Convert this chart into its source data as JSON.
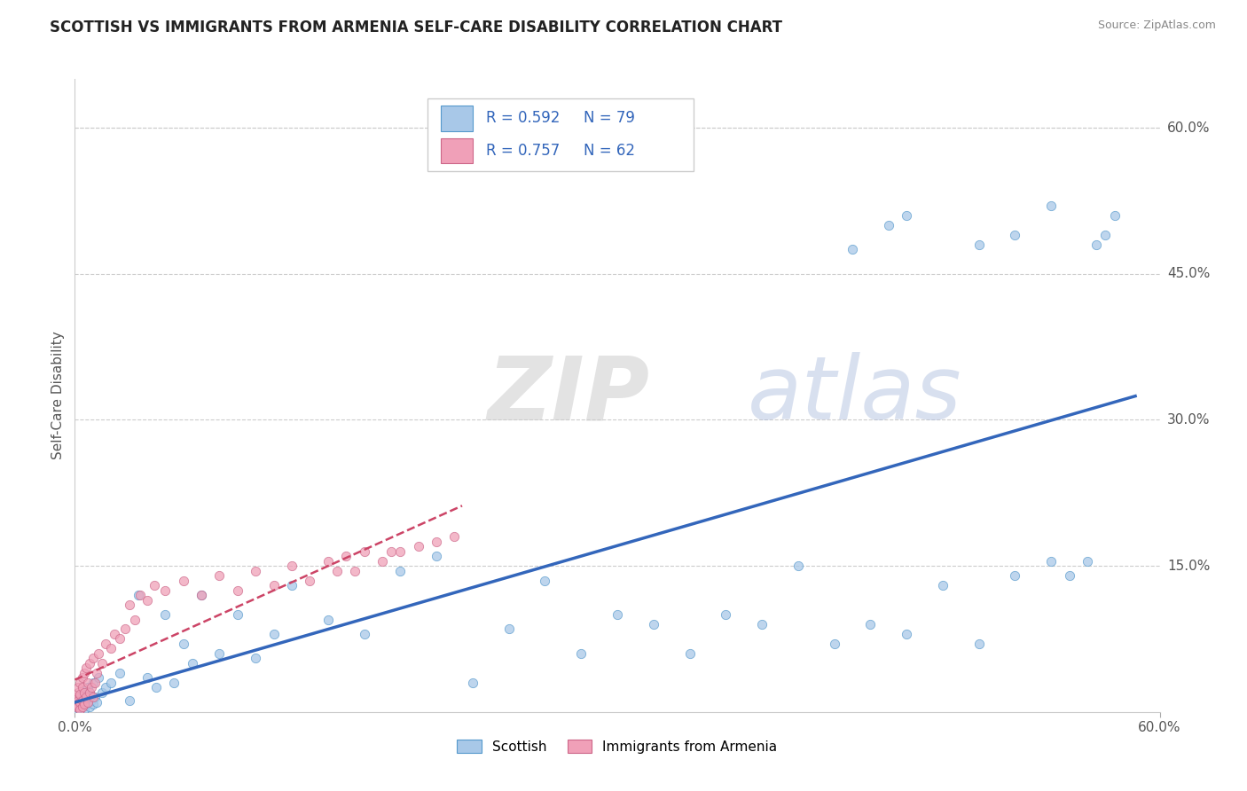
{
  "title": "SCOTTISH VS IMMIGRANTS FROM ARMENIA SELF-CARE DISABILITY CORRELATION CHART",
  "source": "Source: ZipAtlas.com",
  "ylabel": "Self-Care Disability",
  "xlim": [
    0.0,
    0.6
  ],
  "ylim": [
    0.0,
    0.65
  ],
  "ytick_labels": [
    "15.0%",
    "30.0%",
    "45.0%",
    "60.0%"
  ],
  "ytick_values": [
    0.15,
    0.3,
    0.45,
    0.6
  ],
  "legend_bottom_labels": [
    "Scottish",
    "Immigrants from Armenia"
  ],
  "legend_top": {
    "R1": "0.592",
    "N1": "79",
    "R2": "0.757",
    "N2": "62"
  },
  "blue_fill": "#A8C8E8",
  "blue_edge": "#5599CC",
  "pink_fill": "#F0A0B8",
  "pink_edge": "#CC6688",
  "trend_blue": "#3366BB",
  "trend_pink": "#CC4466",
  "watermark_color": "#DDEEFF",
  "title_fontsize": 12,
  "scottish_x": [
    0.001,
    0.001,
    0.001,
    0.002,
    0.002,
    0.002,
    0.002,
    0.003,
    0.003,
    0.003,
    0.003,
    0.004,
    0.004,
    0.004,
    0.005,
    0.005,
    0.005,
    0.006,
    0.006,
    0.007,
    0.007,
    0.008,
    0.008,
    0.009,
    0.01,
    0.01,
    0.011,
    0.012,
    0.013,
    0.015,
    0.017,
    0.02,
    0.025,
    0.03,
    0.035,
    0.04,
    0.045,
    0.05,
    0.055,
    0.06,
    0.065,
    0.07,
    0.08,
    0.09,
    0.1,
    0.11,
    0.12,
    0.14,
    0.16,
    0.18,
    0.2,
    0.22,
    0.24,
    0.26,
    0.28,
    0.3,
    0.32,
    0.34,
    0.36,
    0.38,
    0.4,
    0.42,
    0.44,
    0.46,
    0.48,
    0.5,
    0.52,
    0.54,
    0.55,
    0.56,
    0.565,
    0.57,
    0.575,
    0.43,
    0.45,
    0.46,
    0.5,
    0.52,
    0.54
  ],
  "scottish_y": [
    0.005,
    0.008,
    0.003,
    0.006,
    0.01,
    0.004,
    0.012,
    0.008,
    0.015,
    0.003,
    0.01,
    0.007,
    0.018,
    0.005,
    0.012,
    0.003,
    0.02,
    0.008,
    0.015,
    0.01,
    0.025,
    0.005,
    0.02,
    0.012,
    0.008,
    0.03,
    0.015,
    0.01,
    0.035,
    0.02,
    0.025,
    0.03,
    0.04,
    0.012,
    0.12,
    0.035,
    0.025,
    0.1,
    0.03,
    0.07,
    0.05,
    0.12,
    0.06,
    0.1,
    0.055,
    0.08,
    0.13,
    0.095,
    0.08,
    0.145,
    0.16,
    0.03,
    0.085,
    0.135,
    0.06,
    0.1,
    0.09,
    0.06,
    0.1,
    0.09,
    0.15,
    0.07,
    0.09,
    0.08,
    0.13,
    0.07,
    0.14,
    0.155,
    0.14,
    0.155,
    0.48,
    0.49,
    0.51,
    0.475,
    0.5,
    0.51,
    0.48,
    0.49,
    0.52
  ],
  "armenia_x": [
    0.001,
    0.001,
    0.001,
    0.001,
    0.002,
    0.002,
    0.002,
    0.002,
    0.003,
    0.003,
    0.003,
    0.003,
    0.004,
    0.004,
    0.004,
    0.004,
    0.005,
    0.005,
    0.005,
    0.006,
    0.006,
    0.007,
    0.007,
    0.008,
    0.008,
    0.009,
    0.01,
    0.01,
    0.011,
    0.012,
    0.013,
    0.015,
    0.017,
    0.02,
    0.022,
    0.025,
    0.028,
    0.03,
    0.033,
    0.036,
    0.04,
    0.044,
    0.05,
    0.06,
    0.07,
    0.08,
    0.09,
    0.1,
    0.11,
    0.12,
    0.13,
    0.14,
    0.145,
    0.15,
    0.155,
    0.16,
    0.17,
    0.175,
    0.18,
    0.19,
    0.2,
    0.21
  ],
  "armenia_y": [
    0.01,
    0.005,
    0.015,
    0.008,
    0.012,
    0.02,
    0.005,
    0.025,
    0.01,
    0.03,
    0.003,
    0.018,
    0.012,
    0.025,
    0.005,
    0.035,
    0.008,
    0.04,
    0.02,
    0.015,
    0.045,
    0.01,
    0.03,
    0.02,
    0.05,
    0.025,
    0.015,
    0.055,
    0.03,
    0.04,
    0.06,
    0.05,
    0.07,
    0.065,
    0.08,
    0.075,
    0.085,
    0.11,
    0.095,
    0.12,
    0.115,
    0.13,
    0.125,
    0.135,
    0.12,
    0.14,
    0.125,
    0.145,
    0.13,
    0.15,
    0.135,
    0.155,
    0.145,
    0.16,
    0.145,
    0.165,
    0.155,
    0.165,
    0.165,
    0.17,
    0.175,
    0.18
  ]
}
